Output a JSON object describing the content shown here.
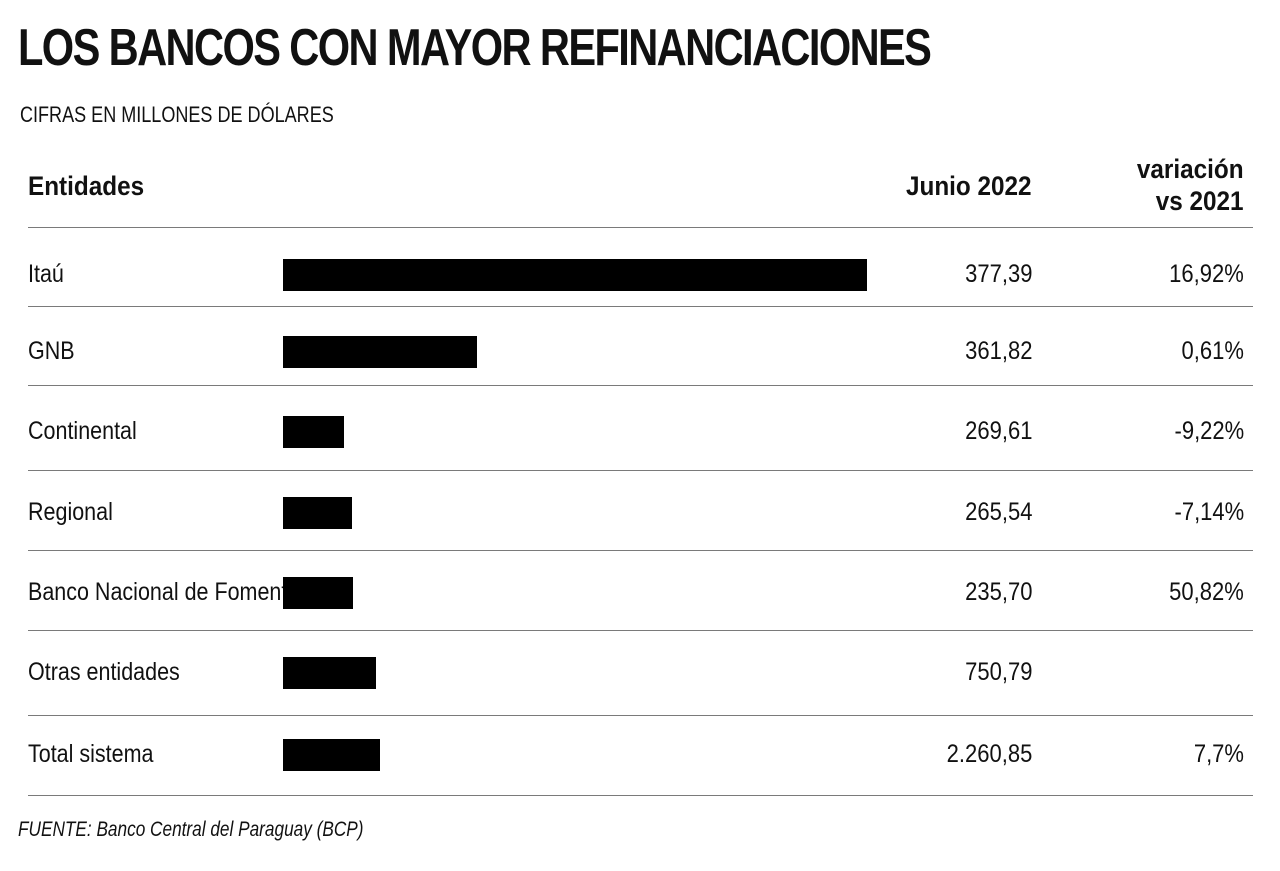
{
  "chart_data": {
    "type": "bar",
    "title": "LOS BANCOS CON MAYOR REFINANCIACIONES",
    "subtitle": "CIFRAS EN MILLONES DE DÓLARES",
    "columns": {
      "entity": "Entidades",
      "value": "Junio 2022",
      "variation": [
        "variación",
        "vs 2021"
      ]
    },
    "rows": [
      {
        "entity": "Itaú",
        "value": 377.39,
        "value_text": "377,39",
        "variation_text": "16,92%"
      },
      {
        "entity": "GNB",
        "value": 361.82,
        "value_text": "361,82",
        "variation_text": "0,61%"
      },
      {
        "entity": "Continental",
        "value": 269.61,
        "value_text": "269,61",
        "variation_text": "-9,22%"
      },
      {
        "entity": "Regional",
        "value": 265.54,
        "value_text": "265,54",
        "variation_text": "-7,14%"
      },
      {
        "entity": "Banco Nacional de Fomento",
        "value": 235.7,
        "value_text": "235,70",
        "variation_text": "50,82%"
      },
      {
        "entity": "Otras entidades",
        "value": 750.79,
        "value_text": "750,79",
        "variation_text": ""
      },
      {
        "entity": "Total sistema",
        "value": 2260.85,
        "value_text": "2.260,85",
        "variation_text": "7,7%"
      }
    ],
    "bar_color": "#000000",
    "grid": false,
    "source": "FUENTE: Banco Central del Paraguay (BCP)"
  }
}
